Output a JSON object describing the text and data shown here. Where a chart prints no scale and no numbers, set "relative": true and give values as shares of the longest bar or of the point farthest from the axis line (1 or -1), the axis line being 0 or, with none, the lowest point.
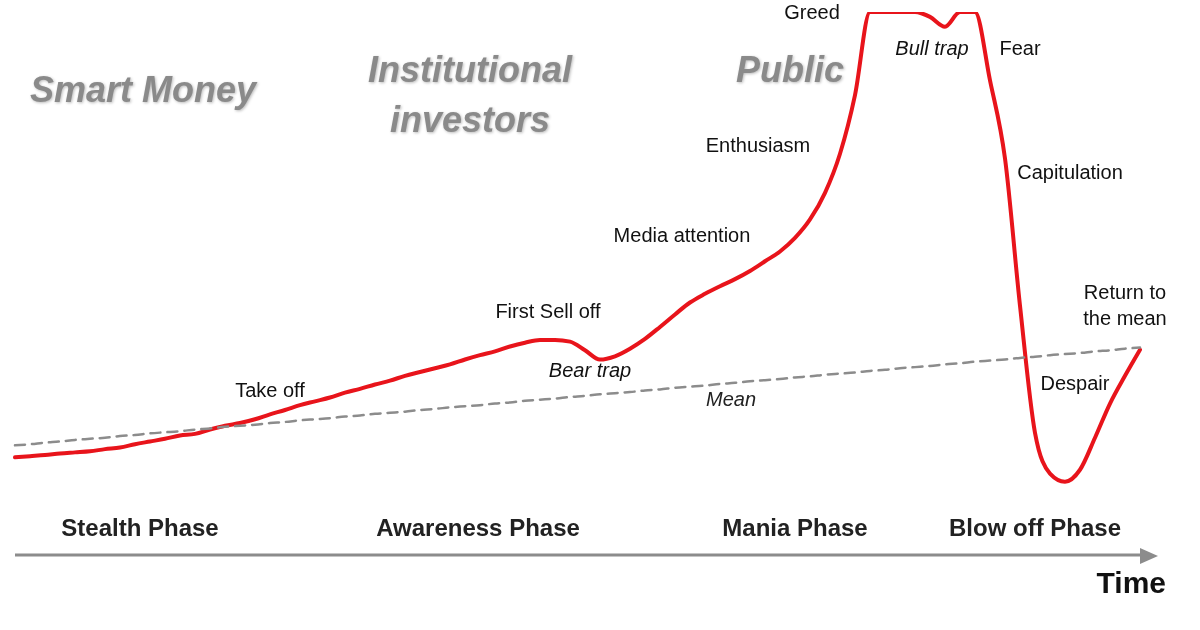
{
  "chart_data": {
    "type": "line",
    "relative": true,
    "xlabel": "Time",
    "legend": false,
    "marker": "none",
    "categories": [
      null,
      null,
      null,
      null,
      null,
      null,
      null,
      null,
      null,
      null,
      null,
      null,
      null,
      null,
      null,
      null,
      null,
      null,
      null,
      null,
      null,
      null,
      null,
      null,
      null,
      null,
      null,
      null,
      null,
      null,
      null,
      null,
      null,
      null,
      null,
      null,
      null,
      null,
      null,
      null,
      null,
      null,
      null,
      null,
      null,
      null,
      null,
      null,
      null,
      null,
      null,
      null,
      null,
      null,
      null,
      null,
      null,
      null,
      null,
      null,
      null,
      null,
      null,
      null,
      null,
      null,
      null,
      null,
      null,
      null,
      null,
      null,
      null,
      null,
      null,
      null
    ],
    "series": [
      {
        "color": "#e8141b",
        "line_style": "solid",
        "values": [
          0.18,
          0.182,
          0.184,
          0.187,
          0.189,
          0.191,
          0.195,
          0.198,
          0.204,
          0.209,
          0.214,
          0.22,
          0.223,
          0.231,
          0.238,
          0.243,
          0.25,
          0.259,
          0.267,
          0.276,
          0.283,
          0.29,
          0.299,
          0.306,
          0.314,
          0.321,
          0.33,
          0.337,
          0.344,
          0.351,
          0.36,
          0.368,
          0.375,
          0.384,
          0.391,
          0.396,
          0.396,
          0.393,
          0.377,
          0.36,
          0.366,
          0.38,
          0.398,
          0.42,
          0.443,
          0.465,
          0.481,
          0.495,
          0.508,
          0.523,
          0.541,
          0.559,
          0.584,
          0.618,
          0.667,
          0.739,
          0.847,
          1,
          1,
          1,
          1,
          0.991,
          0.973,
          1,
          1,
          0.874,
          0.73,
          0.459,
          0.225,
          0.15,
          0.135,
          0.157,
          0.216,
          0.279,
          0.33,
          0.378
        ]
      },
      {
        "name": "Mean",
        "color": "#8c8c8c",
        "line_style": "dashed",
        "values": [
          0.202,
          0.204,
          0.207,
          0.209,
          0.212,
          0.214,
          0.216,
          0.219,
          0.221,
          0.224,
          0.226,
          0.228,
          0.231,
          0.233,
          0.236,
          0.238,
          0.24,
          0.243,
          0.245,
          0.248,
          0.25,
          0.252,
          0.255,
          0.257,
          0.26,
          0.262,
          0.264,
          0.267,
          0.269,
          0.272,
          0.274,
          0.276,
          0.279,
          0.281,
          0.284,
          0.286,
          0.288,
          0.291,
          0.293,
          0.296,
          0.298,
          0.3,
          0.303,
          0.305,
          0.308,
          0.31,
          0.312,
          0.315,
          0.317,
          0.32,
          0.322,
          0.324,
          0.327,
          0.329,
          0.332,
          0.334,
          0.336,
          0.339,
          0.341,
          0.344,
          0.346,
          0.348,
          0.351,
          0.353,
          0.356,
          0.358,
          0.36,
          0.363,
          0.365,
          0.368,
          0.37,
          0.372,
          0.375,
          0.377,
          0.38,
          0.382
        ]
      }
    ],
    "annotations": [
      "Smart Money",
      "Institutional investors",
      "Public",
      "Stealth Phase",
      "Awareness Phase",
      "Mania Phase",
      "Blow off Phase",
      "Greed",
      "Bull trap",
      "Fear",
      "Capitulation",
      "Enthusiasm",
      "Media attention",
      "First Sell off",
      "Bear trap",
      "Take off",
      "Return to the mean",
      "Despair"
    ]
  }
}
